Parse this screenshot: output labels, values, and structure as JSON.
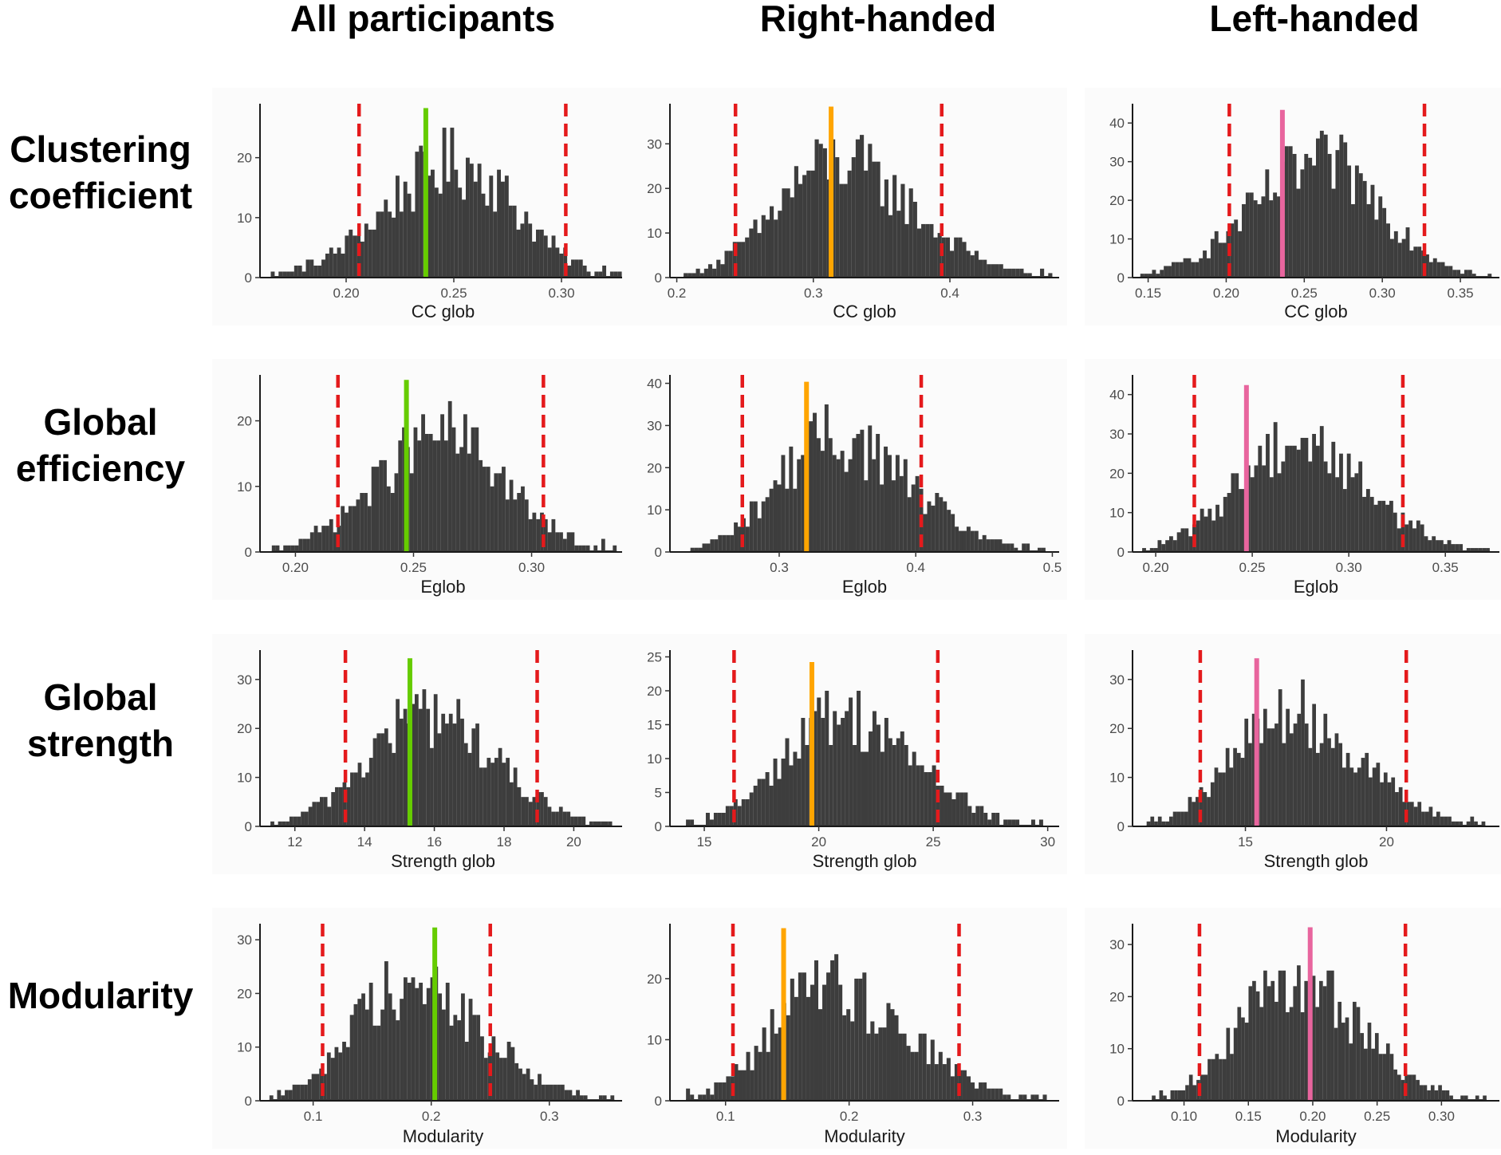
{
  "column_titles": [
    "All participants",
    "Right-handed",
    "Left-handed"
  ],
  "row_titles": [
    [
      "Clustering",
      "coefficient"
    ],
    [
      "Global",
      "efficiency"
    ],
    [
      "Global",
      "strength"
    ],
    [
      "Modularity"
    ]
  ],
  "colors": {
    "bar": "#3d3d3d",
    "threshold": "#e41a1c",
    "observed": [
      "#66cc00",
      "#ffa500",
      "#e8659e"
    ]
  },
  "chart_data": [
    {
      "type": "bar",
      "row": 0,
      "col": 0,
      "xlabel": "CC glob",
      "xlim": [
        0.16,
        0.33
      ],
      "ylim": [
        0,
        29
      ],
      "x_ticks": [
        0.2,
        0.25,
        0.3
      ],
      "x_tick_labels": [
        "0.20",
        "0.25",
        "0.30"
      ],
      "y_ticks": [
        0,
        10,
        20
      ],
      "y_tick_labels": [
        "0",
        "10",
        "20"
      ],
      "range": [
        0.165,
        0.328
      ],
      "mode": 0.252,
      "peak": 28,
      "observed": 0.237,
      "thresholds": [
        0.206,
        0.302
      ]
    },
    {
      "type": "bar",
      "row": 0,
      "col": 1,
      "xlabel": "CC glob",
      "xlim": [
        0.195,
        0.48
      ],
      "ylim": [
        0,
        39
      ],
      "x_ticks": [
        0.2,
        0.3,
        0.4
      ],
      "x_tick_labels": [
        "0.2",
        "0.3",
        "0.4"
      ],
      "y_ticks": [
        0,
        10,
        20,
        30
      ],
      "y_tick_labels": [
        "0",
        "10",
        "20",
        "30"
      ],
      "range": [
        0.205,
        0.475
      ],
      "mode": 0.315,
      "peak": 38,
      "observed": 0.313,
      "thresholds": [
        0.243,
        0.394
      ]
    },
    {
      "type": "bar",
      "row": 0,
      "col": 2,
      "xlabel": "CC glob",
      "xlim": [
        0.14,
        0.375
      ],
      "ylim": [
        0,
        45
      ],
      "x_ticks": [
        0.15,
        0.2,
        0.25,
        0.3,
        0.35
      ],
      "x_tick_labels": [
        "0.15",
        "0.20",
        "0.25",
        "0.30",
        "0.35"
      ],
      "y_ticks": [
        0,
        10,
        20,
        30,
        40
      ],
      "y_tick_labels": [
        "0",
        "10",
        "20",
        "30",
        "40"
      ],
      "range": [
        0.145,
        0.37
      ],
      "mode": 0.262,
      "peak": 43,
      "observed": 0.236,
      "thresholds": [
        0.202,
        0.327
      ]
    },
    {
      "type": "bar",
      "row": 1,
      "col": 0,
      "xlabel": "Eglob",
      "xlim": [
        0.185,
        0.34
      ],
      "ylim": [
        0,
        27
      ],
      "x_ticks": [
        0.2,
        0.25,
        0.3
      ],
      "x_tick_labels": [
        "0.20",
        "0.25",
        "0.30"
      ],
      "y_ticks": [
        0,
        10,
        20
      ],
      "y_tick_labels": [
        "0",
        "10",
        "20"
      ],
      "range": [
        0.19,
        0.336
      ],
      "mode": 0.262,
      "peak": 26,
      "observed": 0.247,
      "thresholds": [
        0.218,
        0.305
      ]
    },
    {
      "type": "bar",
      "row": 1,
      "col": 1,
      "xlabel": "Eglob",
      "xlim": [
        0.22,
        0.505
      ],
      "ylim": [
        0,
        42
      ],
      "x_ticks": [
        0.3,
        0.4,
        0.5
      ],
      "x_tick_labels": [
        "0.3",
        "0.4",
        "0.5"
      ],
      "y_ticks": [
        0,
        10,
        20,
        30,
        40
      ],
      "y_tick_labels": [
        "0",
        "10",
        "20",
        "30",
        "40"
      ],
      "range": [
        0.235,
        0.495
      ],
      "mode": 0.338,
      "peak": 40,
      "observed": 0.32,
      "thresholds": [
        0.273,
        0.404
      ]
    },
    {
      "type": "bar",
      "row": 1,
      "col": 2,
      "xlabel": "Eglob",
      "xlim": [
        0.188,
        0.378
      ],
      "ylim": [
        0,
        45
      ],
      "x_ticks": [
        0.2,
        0.25,
        0.3,
        0.35
      ],
      "x_tick_labels": [
        "0.20",
        "0.25",
        "0.30",
        "0.35"
      ],
      "y_ticks": [
        0,
        10,
        20,
        30,
        40
      ],
      "y_tick_labels": [
        "0",
        "10",
        "20",
        "30",
        "40"
      ],
      "range": [
        0.193,
        0.373
      ],
      "mode": 0.272,
      "peak": 42,
      "observed": 0.247,
      "thresholds": [
        0.22,
        0.328
      ]
    },
    {
      "type": "bar",
      "row": 2,
      "col": 0,
      "xlabel": "Strength glob",
      "xlim": [
        11.0,
        21.5
      ],
      "ylim": [
        0,
        36
      ],
      "x_ticks": [
        12,
        14,
        16,
        18,
        20
      ],
      "x_tick_labels": [
        "12",
        "14",
        "16",
        "18",
        "20"
      ],
      "y_ticks": [
        0,
        10,
        20,
        30
      ],
      "y_tick_labels": [
        "0",
        "10",
        "20",
        "30"
      ],
      "range": [
        11.3,
        21.1
      ],
      "mode": 15.8,
      "peak": 34,
      "observed": 15.3,
      "thresholds": [
        13.45,
        18.95
      ]
    },
    {
      "type": "bar",
      "row": 2,
      "col": 1,
      "xlabel": "Strength glob",
      "xlim": [
        13.5,
        30.5
      ],
      "ylim": [
        0,
        26
      ],
      "x_ticks": [
        15,
        20,
        25,
        30
      ],
      "x_tick_labels": [
        "15",
        "20",
        "25",
        "30"
      ],
      "y_ticks": [
        0,
        5,
        10,
        15,
        20,
        25
      ],
      "y_tick_labels": [
        "0",
        "5",
        "10",
        "15",
        "20",
        "25"
      ],
      "range": [
        14.2,
        29.8
      ],
      "mode": 21.0,
      "peak": 24,
      "observed": 19.7,
      "thresholds": [
        16.3,
        25.2
      ]
    },
    {
      "type": "bar",
      "row": 2,
      "col": 2,
      "xlabel": "Strength glob",
      "xlim": [
        11.0,
        24.0
      ],
      "ylim": [
        0,
        36
      ],
      "x_ticks": [
        15,
        20
      ],
      "x_tick_labels": [
        "15",
        "20"
      ],
      "y_ticks": [
        0,
        10,
        20,
        30
      ],
      "y_tick_labels": [
        "0",
        "10",
        "20",
        "30"
      ],
      "range": [
        11.5,
        23.5
      ],
      "mode": 16.5,
      "peak": 34,
      "observed": 15.4,
      "thresholds": [
        13.4,
        20.7
      ]
    },
    {
      "type": "bar",
      "row": 3,
      "col": 0,
      "xlabel": "Modularity",
      "xlim": [
        0.055,
        0.365
      ],
      "ylim": [
        0,
        33
      ],
      "x_ticks": [
        0.1,
        0.2,
        0.3
      ],
      "x_tick_labels": [
        "0.1",
        "0.2",
        "0.3"
      ],
      "y_ticks": [
        0,
        10,
        20,
        30
      ],
      "y_tick_labels": [
        "0",
        "10",
        "20",
        "30"
      ],
      "range": [
        0.063,
        0.355
      ],
      "mode": 0.175,
      "peak": 32,
      "observed": 0.203,
      "thresholds": [
        0.108,
        0.25
      ]
    },
    {
      "type": "bar",
      "row": 3,
      "col": 1,
      "xlabel": "Modularity",
      "xlim": [
        0.055,
        0.37
      ],
      "ylim": [
        0,
        29
      ],
      "x_ticks": [
        0.1,
        0.2,
        0.3
      ],
      "x_tick_labels": [
        "0.1",
        "0.2",
        "0.3"
      ],
      "y_ticks": [
        0,
        10,
        20
      ],
      "y_tick_labels": [
        "0",
        "10",
        "20"
      ],
      "range": [
        0.068,
        0.36
      ],
      "mode": 0.18,
      "peak": 28,
      "observed": 0.147,
      "thresholds": [
        0.106,
        0.289
      ]
    },
    {
      "type": "bar",
      "row": 3,
      "col": 2,
      "xlabel": "Modularity",
      "xlim": [
        0.06,
        0.345
      ],
      "ylim": [
        0,
        34
      ],
      "x_ticks": [
        0.1,
        0.15,
        0.2,
        0.25,
        0.3
      ],
      "x_tick_labels": [
        "0.10",
        "0.15",
        "0.20",
        "0.25",
        "0.30"
      ],
      "y_ticks": [
        0,
        10,
        20,
        30
      ],
      "y_tick_labels": [
        "0",
        "10",
        "20",
        "30"
      ],
      "range": [
        0.075,
        0.335
      ],
      "mode": 0.183,
      "peak": 33,
      "observed": 0.198,
      "thresholds": [
        0.112,
        0.272
      ]
    }
  ]
}
